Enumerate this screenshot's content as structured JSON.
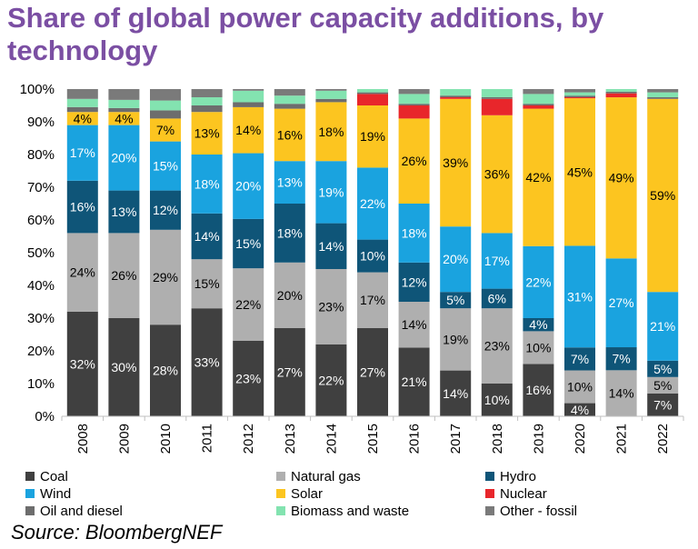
{
  "title": "Share of global power capacity additions, by technology",
  "source": "Source: BloombergNEF",
  "chart_data": {
    "type": "bar",
    "stacked": true,
    "categories": [
      "2008",
      "2009",
      "2010",
      "2011",
      "2012",
      "2013",
      "2014",
      "2015",
      "2016",
      "2017",
      "2018",
      "2019",
      "2020",
      "2021",
      "2022"
    ],
    "y_ticks": [
      "0%",
      "10%",
      "20%",
      "30%",
      "40%",
      "50%",
      "60%",
      "70%",
      "80%",
      "90%",
      "100%"
    ],
    "ylim": [
      0,
      100
    ],
    "legend_position": "bottom",
    "series": [
      {
        "name": "Coal",
        "color": "#404040",
        "label_color": "#ffffff",
        "values": [
          32,
          30,
          28,
          33,
          23,
          27,
          22,
          27,
          21,
          14,
          10,
          16,
          4,
          0,
          7
        ]
      },
      {
        "name": "Natural gas",
        "color": "#afafaf",
        "label_color": "#000000",
        "values": [
          24,
          26,
          29,
          15,
          22,
          20,
          23,
          17,
          14,
          19,
          23,
          10,
          10,
          14,
          5
        ]
      },
      {
        "name": "Hydro",
        "color": "#0f5578",
        "label_color": "#ffffff",
        "values": [
          16,
          13,
          12,
          14,
          15,
          18,
          14,
          10,
          12,
          5,
          6,
          4,
          7,
          7,
          5
        ]
      },
      {
        "name": "Wind",
        "color": "#1aa3df",
        "label_color": "#ffffff",
        "values": [
          17,
          20,
          15,
          18,
          20,
          13,
          19,
          22,
          18,
          20,
          17,
          22,
          31,
          27,
          21
        ]
      },
      {
        "name": "Solar",
        "color": "#fcc520",
        "label_color": "#000000",
        "values": [
          4,
          4,
          7,
          13,
          14,
          16,
          18,
          19,
          26,
          39,
          36,
          42,
          45,
          49,
          59
        ]
      },
      {
        "name": "Nuclear",
        "color": "#e8262b",
        "label_color": "#000000",
        "values": [
          0,
          0,
          0,
          0,
          0,
          0,
          0,
          3.5,
          4,
          0.5,
          5,
          1,
          0.3,
          1.2,
          0
        ]
      },
      {
        "name": "Oil and diesel",
        "color": "#6d6d6d",
        "label_color": "#ffffff",
        "values": [
          1.5,
          1.2,
          2.5,
          2,
          1.5,
          1.5,
          1,
          0.5,
          0.5,
          0.5,
          0.5,
          0.5,
          0.5,
          0.5,
          0.5
        ]
      },
      {
        "name": "Biomass and waste",
        "color": "#83e3b0",
        "label_color": "#000000",
        "values": [
          2.5,
          2.5,
          3,
          2.5,
          3.5,
          2.5,
          2.5,
          1,
          3,
          2,
          2.5,
          3,
          1,
          0.8,
          1.5
        ]
      },
      {
        "name": "Other - fossil",
        "color": "#7a7a7a",
        "label_color": "#ffffff",
        "values": [
          3,
          3.3,
          3.5,
          2.5,
          0.5,
          2,
          0.5,
          0,
          1.5,
          0,
          0,
          1.5,
          1,
          0,
          1
        ]
      }
    ],
    "data_labels": {
      "Coal": [
        "32%",
        "30%",
        "28%",
        "33%",
        "23%",
        "27%",
        "22%",
        "27%",
        "21%",
        "14%",
        "10%",
        "16%",
        "4%",
        "",
        "7%"
      ],
      "Natural gas": [
        "24%",
        "26%",
        "29%",
        "15%",
        "22%",
        "20%",
        "23%",
        "17%",
        "14%",
        "19%",
        "23%",
        "10%",
        "10%",
        "14%",
        "5%"
      ],
      "Hydro": [
        "16%",
        "13%",
        "12%",
        "14%",
        "15%",
        "18%",
        "14%",
        "10%",
        "12%",
        "5%",
        "6%",
        "4%",
        "7%",
        "7%",
        "5%"
      ],
      "Wind": [
        "17%",
        "20%",
        "15%",
        "18%",
        "20%",
        "13%",
        "19%",
        "22%",
        "18%",
        "20%",
        "17%",
        "22%",
        "31%",
        "27%",
        "21%"
      ],
      "Solar": [
        "4%",
        "4%",
        "7%",
        "13%",
        "14%",
        "16%",
        "18%",
        "19%",
        "26%",
        "39%",
        "36%",
        "42%",
        "45%",
        "49%",
        "59%"
      ]
    }
  }
}
